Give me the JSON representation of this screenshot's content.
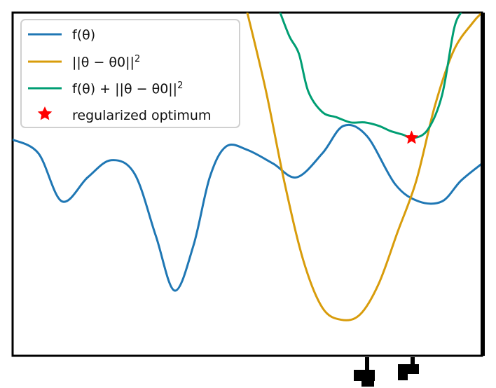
{
  "chart_data": {
    "type": "line",
    "title": "",
    "xlabel": "",
    "ylabel": "",
    "xlim": [
      0,
      10
    ],
    "ylim": [
      0,
      10
    ],
    "grid": false,
    "legend_position": "top-left",
    "legend": [
      {
        "id": "f",
        "label": "f(θ)",
        "color": "#1f77b4"
      },
      {
        "id": "reg",
        "label": "||θ − θ0||^2",
        "color": "#d89c0b"
      },
      {
        "id": "sum",
        "label": "f(θ) + ||θ − θ0||^2",
        "color": "#009e73"
      },
      {
        "id": "opt",
        "label": "regularized optimum",
        "color": "#ff0000",
        "marker": "star"
      }
    ],
    "series": [
      {
        "name": "f(θ)",
        "color": "#1f77b4",
        "x": [
          0,
          0.55,
          1.05,
          1.6,
          2.1,
          2.6,
          3.05,
          3.45,
          3.85,
          4.2,
          4.55,
          5.0,
          5.55,
          6.05,
          6.6,
          7.05,
          7.55,
          8.15,
          8.65,
          9.15,
          9.55,
          10
        ],
        "y": [
          6.3,
          5.9,
          4.5,
          5.2,
          5.7,
          5.3,
          3.5,
          1.9,
          3.2,
          5.2,
          6.1,
          6.0,
          5.6,
          5.2,
          5.9,
          6.7,
          6.4,
          5.0,
          4.5,
          4.5,
          5.1,
          5.6
        ]
      },
      {
        "name": "||θ − θ0||^2",
        "color": "#d89c0b",
        "x": [
          5.0,
          5.4,
          5.8,
          6.2,
          6.6,
          7.0,
          7.4,
          7.8,
          8.2,
          8.6,
          9.0,
          9.4,
          9.8,
          10.0
        ],
        "y": [
          10.0,
          7.7,
          5.0,
          2.75,
          1.4,
          1.05,
          1.2,
          2.1,
          3.6,
          5.1,
          7.3,
          8.9,
          9.7,
          10.0
        ]
      },
      {
        "name": "f(θ) + ||θ − θ0||^2",
        "color": "#009e73",
        "x": [
          5.7,
          5.9,
          6.1,
          6.3,
          6.6,
          6.9,
          7.2,
          7.5,
          7.8,
          8.05,
          8.3,
          8.55,
          8.85,
          9.15,
          9.4,
          9.55
        ],
        "y": [
          10.0,
          9.3,
          8.8,
          7.7,
          7.1,
          6.95,
          6.8,
          6.8,
          6.7,
          6.55,
          6.45,
          6.35,
          6.6,
          7.6,
          9.5,
          10.0
        ]
      }
    ],
    "optimum_point": {
      "x": 8.5,
      "y": 6.35
    }
  }
}
